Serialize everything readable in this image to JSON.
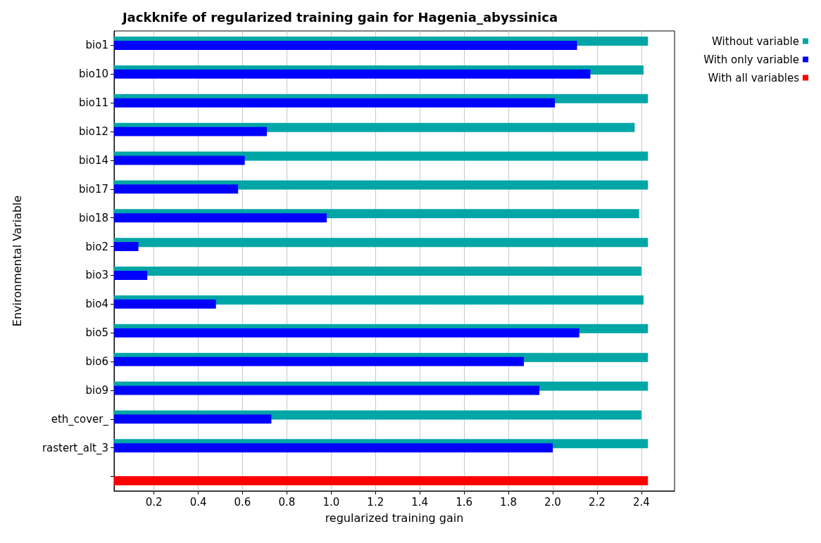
{
  "chart_data": {
    "type": "bar",
    "orientation": "horizontal",
    "title": "Jackknife of regularized training gain for Hagenia_abyssinica",
    "xlabel": "regularized training gain",
    "ylabel": "Environmental Variable",
    "categories": [
      "bio1",
      "bio10",
      "bio11",
      "bio12",
      "bio14",
      "bio17",
      "bio18",
      "bio2",
      "bio3",
      "bio4",
      "bio5",
      "bio6",
      "bio9",
      "eth_cover_",
      "rastert_alt_3",
      null
    ],
    "series": [
      {
        "name": "Without variable",
        "color": "#00a6a6",
        "values": [
          2.43,
          2.41,
          2.43,
          2.37,
          2.43,
          2.43,
          2.39,
          2.43,
          2.4,
          2.41,
          2.43,
          2.43,
          2.43,
          2.4,
          2.43,
          null
        ]
      },
      {
        "name": "With only variable",
        "color": "#0000ff",
        "values": [
          2.11,
          2.17,
          2.01,
          0.71,
          0.61,
          0.58,
          0.98,
          0.13,
          0.17,
          0.48,
          2.12,
          1.87,
          1.94,
          0.73,
          2.0,
          null
        ]
      },
      {
        "name": "With all variables",
        "color": "#ff0000",
        "values": [
          null,
          null,
          null,
          null,
          null,
          null,
          null,
          null,
          null,
          null,
          null,
          null,
          null,
          null,
          null,
          2.43
        ]
      }
    ],
    "xlim": [
      0.02,
      2.55
    ],
    "xticks": [
      0.2,
      0.4,
      0.6,
      0.8,
      {
        "value": 1,
        "label": "1.0"
      },
      1.2,
      1.4,
      1.6,
      1.8,
      {
        "value": 2,
        "label": "2.0"
      },
      2.2,
      2.4
    ],
    "grid": "x",
    "legend": "top right"
  }
}
